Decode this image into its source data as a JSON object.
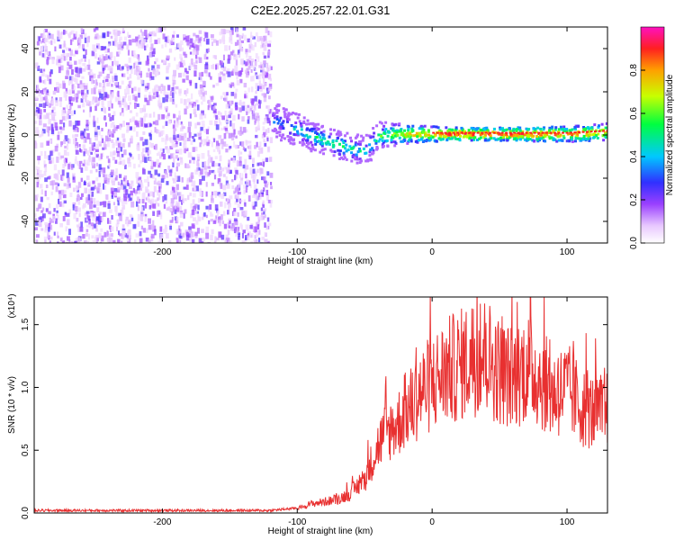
{
  "title": "C2E2.2025.257.22.01.G31",
  "chart_data": [
    {
      "type": "heatmap",
      "xlabel": "Height of straight line (km)",
      "ylabel": "Frequency (Hz)",
      "xlim": [
        -295,
        130
      ],
      "ylim": [
        -50,
        50
      ],
      "xticks": [
        -200,
        -100,
        0,
        100
      ],
      "xtick_labels": [
        "-200",
        "-100",
        "0",
        "100"
      ],
      "yticks": [
        -40,
        -20,
        0,
        20,
        40
      ],
      "ytick_labels": [
        "-40",
        "-20",
        "0",
        "20",
        "40"
      ],
      "colorbar": {
        "label": "Normalized spectral amplitude",
        "range": [
          0,
          1
        ],
        "ticks": [
          0.0,
          0.2,
          0.4,
          0.6,
          0.8
        ],
        "tick_labels": [
          "0.0",
          "0.2",
          "0.4",
          "0.6",
          "0.8"
        ]
      },
      "noise_region": {
        "x_range": [
          -295,
          -120
        ],
        "amplitude_range": [
          0.05,
          0.2
        ]
      },
      "signal_track": {
        "x": [
          -120,
          -110,
          -100,
          -90,
          -80,
          -70,
          -60,
          -50,
          -45,
          -40,
          -30,
          -20,
          -10,
          0,
          20,
          40,
          60,
          80,
          100,
          130
        ],
        "frequency": [
          8,
          5,
          3,
          0,
          -2,
          -4,
          -6,
          -7,
          -3,
          0,
          1,
          1,
          1,
          1,
          1,
          1,
          1,
          1,
          1,
          2
        ],
        "amplitude": [
          0.35,
          0.4,
          0.45,
          0.5,
          0.55,
          0.55,
          0.5,
          0.45,
          0.5,
          0.55,
          0.65,
          0.75,
          0.8,
          0.85,
          0.9,
          0.9,
          0.9,
          0.85,
          0.85,
          0.8
        ]
      }
    },
    {
      "type": "line",
      "xlabel": "Height of straight line (km)",
      "ylabel": "SNR (10 * v/v)",
      "y_scale_note": "(x10⁴)",
      "xlim": [
        -295,
        130
      ],
      "ylim": [
        0,
        1.72
      ],
      "xticks": [
        -200,
        -100,
        0,
        100
      ],
      "xtick_labels": [
        "-200",
        "-100",
        "0",
        "100"
      ],
      "yticks": [
        0.0,
        0.5,
        1.0,
        1.5
      ],
      "ytick_labels": [
        "0.0",
        "0.5",
        "1.0",
        "1.5"
      ],
      "series": [
        {
          "name": "SNR",
          "color": "#e83030",
          "x": [
            -295,
            -250,
            -200,
            -150,
            -120,
            -100,
            -90,
            -80,
            -70,
            -60,
            -50,
            -45,
            -40,
            -35,
            -30,
            -25,
            -20,
            -15,
            -10,
            -5,
            0,
            5,
            10,
            20,
            30,
            40,
            50,
            60,
            70,
            80,
            90,
            100,
            110,
            120,
            130
          ],
          "values": [
            0.02,
            0.02,
            0.02,
            0.02,
            0.02,
            0.04,
            0.08,
            0.1,
            0.12,
            0.18,
            0.3,
            0.45,
            0.6,
            0.7,
            0.75,
            0.8,
            0.9,
            0.95,
            1.05,
            1.1,
            1.15,
            1.2,
            1.25,
            1.3,
            1.38,
            1.4,
            1.25,
            1.2,
            1.3,
            1.2,
            1.05,
            1.1,
            0.95,
            0.88,
            0.9
          ]
        }
      ]
    }
  ]
}
